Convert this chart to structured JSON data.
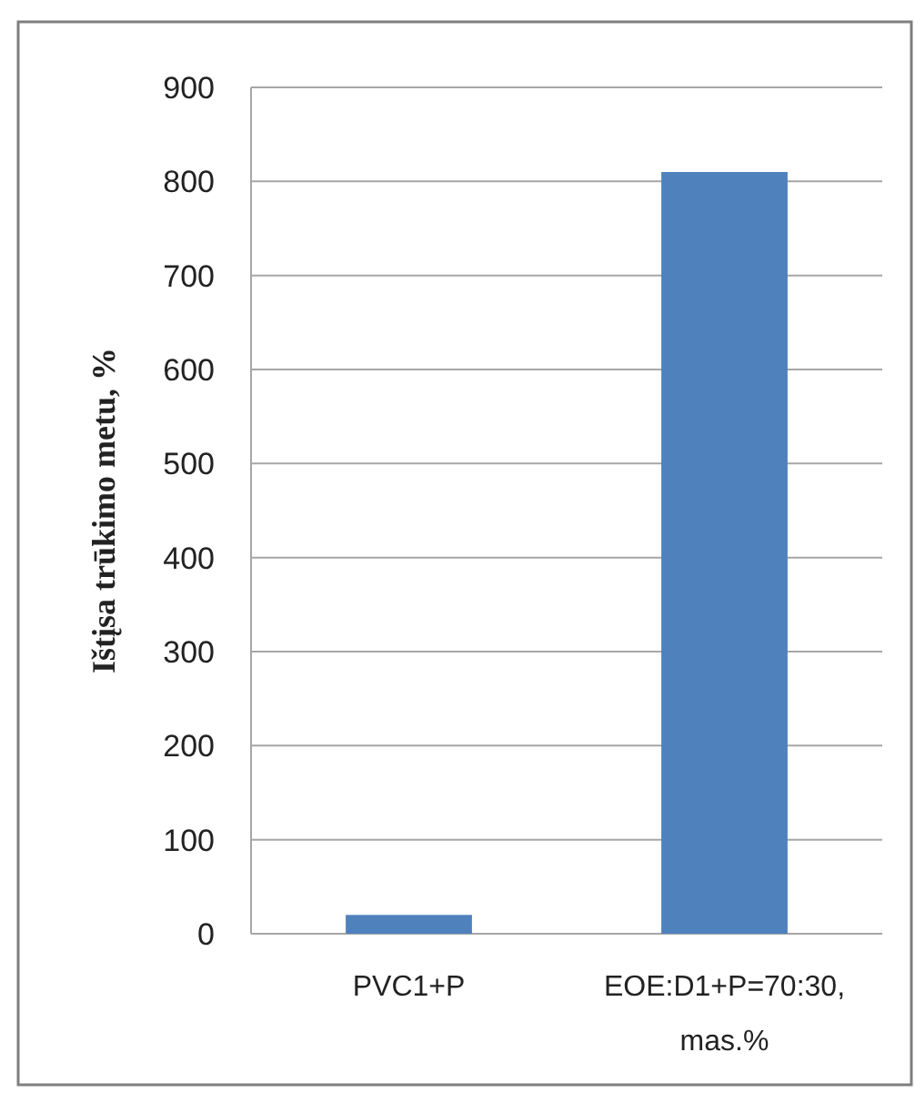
{
  "chart_data": {
    "type": "bar",
    "ylabel": "Ištįsa trūkimo metu, %",
    "categories": [
      "PVC1+P",
      "EOE:D1+P=70:30, mas.%"
    ],
    "values": [
      20,
      810
    ],
    "color": "#4f81bd",
    "ylim": [
      0,
      900
    ],
    "yticks": [
      0,
      100,
      200,
      300,
      400,
      500,
      600,
      700,
      800,
      900
    ],
    "grid": "y"
  }
}
